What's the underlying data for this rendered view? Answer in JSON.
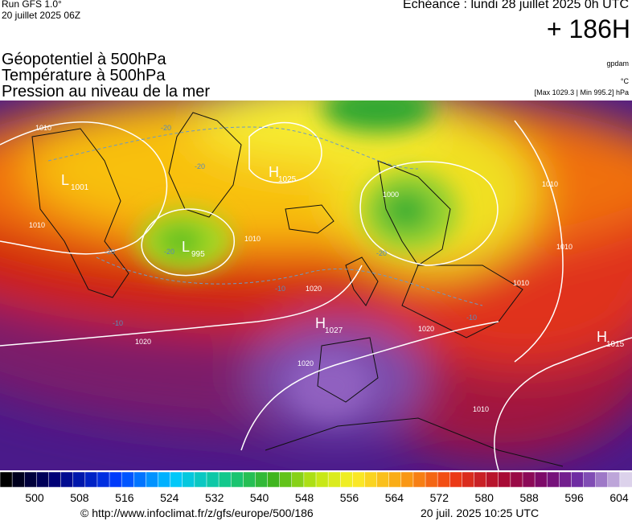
{
  "header": {
    "model": "Run GFS 1.0°",
    "run": "20 juillet 2025 06Z",
    "valid": "Echéance : lundi 28 juillet 2025 0h UTC",
    "lead": "+ 186H"
  },
  "titles": [
    "Géopotentiel à 500hPa",
    "Température à 500hPa",
    "Pression au niveau de la mer"
  ],
  "units": [
    "gpdam",
    "°C",
    "[Max 1029.3 | Min 995.2] hPa"
  ],
  "centers": [
    {
      "letter": "L",
      "value": "1001"
    },
    {
      "letter": "L",
      "value": "995"
    },
    {
      "letter": "H",
      "value": "1025"
    },
    {
      "letter": "H",
      "value": "1027"
    },
    {
      "letter": "H",
      "value": "1015"
    }
  ],
  "isobar_labels": [
    "1010",
    "1010",
    "1010",
    "1000",
    "1010",
    "1010",
    "1010",
    "1020",
    "1020",
    "1020",
    "1020",
    "1010"
  ],
  "temperature_labels": [
    "-20",
    "-20",
    "-20",
    "-20",
    "-10",
    "-10",
    "-20",
    "-10"
  ],
  "colorbar": {
    "ticks": [
      500,
      508,
      516,
      524,
      532,
      540,
      548,
      556,
      564,
      572,
      580,
      588,
      596,
      604
    ]
  },
  "footer": {
    "url": "© http://www.infoclimat.fr/z/gfs/europe/500/186",
    "date": "20 juil. 2025 10:25 UTC"
  }
}
